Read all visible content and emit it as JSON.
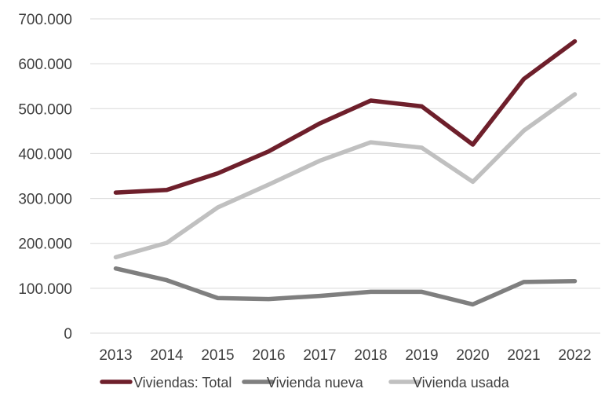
{
  "chart_data": {
    "type": "line",
    "title": "",
    "xlabel": "",
    "ylabel": "",
    "ylim": [
      0,
      700000
    ],
    "ytick_values": [
      0,
      100000,
      200000,
      300000,
      400000,
      500000,
      600000,
      700000
    ],
    "ytick_labels": [
      "0",
      "100.000",
      "200.000",
      "300.000",
      "400.000",
      "500.000",
      "600.000",
      "700.000"
    ],
    "grid": true,
    "legend_position": "bottom",
    "categories": [
      "2013",
      "2014",
      "2015",
      "2016",
      "2017",
      "2018",
      "2019",
      "2020",
      "2021",
      "2022"
    ],
    "series": [
      {
        "name": "Viviendas: Total",
        "color": "#6e1f2b",
        "values": [
          313000,
          319000,
          356000,
          405000,
          467000,
          518000,
          505000,
          420000,
          566000,
          650000
        ]
      },
      {
        "name": "Vivienda nueva",
        "color": "#7f7f7f",
        "values": [
          144000,
          118000,
          78000,
          76000,
          83000,
          92000,
          92000,
          64000,
          114000,
          116000
        ]
      },
      {
        "name": "Vivienda usada",
        "color": "#c0c0c0",
        "values": [
          169000,
          201000,
          280000,
          331000,
          384000,
          425000,
          413000,
          337000,
          451000,
          532000
        ]
      }
    ]
  }
}
